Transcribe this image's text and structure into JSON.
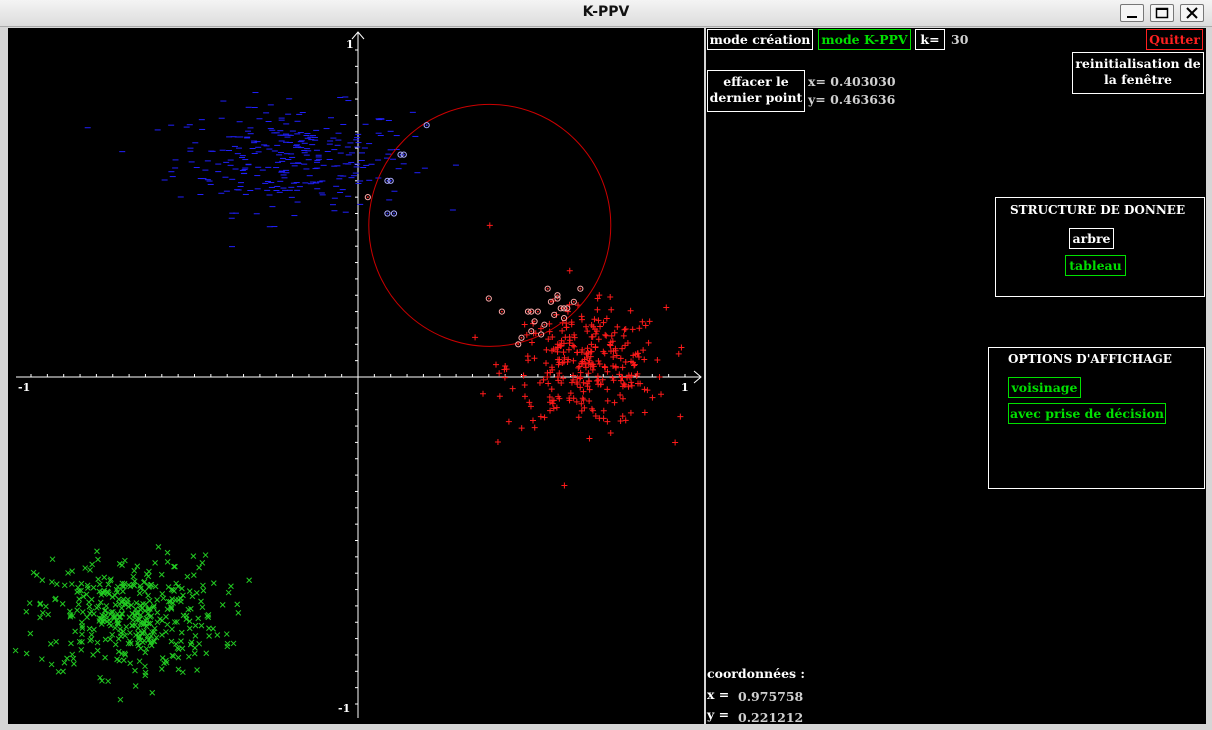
{
  "window": {
    "title": "K-PPV"
  },
  "toolbar": {
    "mode_creation": "mode création",
    "mode_kppv": "mode K-PPV",
    "k_label": "k=",
    "k_value": "30",
    "quit": "Quitter",
    "erase_line1": "effacer le",
    "erase_line2": "dernier point",
    "last_x": "x= 0.403030",
    "last_y": "y= 0.463636",
    "reset_line1": "reinitialisation de",
    "reset_line2": "la fenêtre"
  },
  "structure": {
    "title": "STRUCTURE DE DONNEE",
    "options": [
      "arbre",
      "tableau"
    ],
    "selected": "tableau"
  },
  "display": {
    "title": "OPTIONS D'AFFICHAGE",
    "options": [
      "voisinage",
      "avec prise de décision"
    ],
    "active": [
      "voisinage",
      "avec prise de décision"
    ]
  },
  "coords": {
    "title": "coordonnées :",
    "x_label": "x =",
    "x_value": "0.975758",
    "y_label": "y =",
    "y_value": "0.221212"
  },
  "colors": {
    "blue_class": "#2020ff",
    "red_class": "#ff1a1a",
    "green_class": "#22cc22",
    "circle": "#cc0000",
    "active_option": "#00e000"
  },
  "chart_data": {
    "type": "scatter",
    "xlim": [
      -1,
      1
    ],
    "ylim": [
      -1,
      1
    ],
    "tick_labels": {
      "x_min": "-1",
      "x_max": "1",
      "y_min": "-1",
      "y_max": "1"
    },
    "query_point": {
      "x": 0.40303,
      "y": 0.463636,
      "marker": "+"
    },
    "neighbor_radius": 0.37,
    "series": [
      {
        "marker": "-",
        "color": "#2020ff",
        "count": 300,
        "center": [
          -0.2,
          0.67
        ],
        "spread": [
          0.18,
          0.08
        ]
      },
      {
        "marker": "+",
        "color": "#ff1a1a",
        "count": 300,
        "center": [
          0.7,
          0.03
        ],
        "spread": [
          0.12,
          0.09
        ]
      },
      {
        "marker": "x",
        "color": "#22cc22",
        "count": 400,
        "center": [
          -0.7,
          -0.73
        ],
        "spread": [
          0.14,
          0.09
        ]
      }
    ],
    "neighbors": [
      {
        "x": 0.21,
        "y": 0.77,
        "color": "#aaaaff"
      },
      {
        "x": 0.13,
        "y": 0.68,
        "color": "#aaaaff"
      },
      {
        "x": 0.14,
        "y": 0.68,
        "color": "#aaaaff"
      },
      {
        "x": 0.09,
        "y": 0.6,
        "color": "#aaaaff"
      },
      {
        "x": 0.1,
        "y": 0.6,
        "color": "#aaaaff"
      },
      {
        "x": 0.03,
        "y": 0.55,
        "color": "#ffaaaa"
      },
      {
        "x": 0.09,
        "y": 0.5,
        "color": "#aaaaff"
      },
      {
        "x": 0.11,
        "y": 0.5,
        "color": "#aaaaff"
      },
      {
        "x": 0.4,
        "y": 0.24,
        "color": "#ffaaaa"
      },
      {
        "x": 0.44,
        "y": 0.2,
        "color": "#ffaaaa"
      },
      {
        "x": 0.52,
        "y": 0.2,
        "color": "#ffaaaa"
      },
      {
        "x": 0.53,
        "y": 0.2,
        "color": "#ffaaaa"
      },
      {
        "x": 0.55,
        "y": 0.2,
        "color": "#ffaaaa"
      },
      {
        "x": 0.58,
        "y": 0.27,
        "color": "#ffaaaa"
      },
      {
        "x": 0.59,
        "y": 0.23,
        "color": "#ffaaaa"
      },
      {
        "x": 0.61,
        "y": 0.24,
        "color": "#ffaaaa"
      },
      {
        "x": 0.62,
        "y": 0.21,
        "color": "#ffaaaa"
      },
      {
        "x": 0.63,
        "y": 0.21,
        "color": "#ffaaaa"
      },
      {
        "x": 0.64,
        "y": 0.21,
        "color": "#ffaaaa"
      },
      {
        "x": 0.6,
        "y": 0.19,
        "color": "#ffaaaa"
      },
      {
        "x": 0.54,
        "y": 0.17,
        "color": "#ffaaaa"
      },
      {
        "x": 0.63,
        "y": 0.18,
        "color": "#ffaaaa"
      },
      {
        "x": 0.53,
        "y": 0.14,
        "color": "#ffaaaa"
      },
      {
        "x": 0.56,
        "y": 0.13,
        "color": "#ffaaaa"
      },
      {
        "x": 0.49,
        "y": 0.1,
        "color": "#ffaaaa"
      },
      {
        "x": 0.66,
        "y": 0.23,
        "color": "#ffaaaa"
      },
      {
        "x": 0.68,
        "y": 0.27,
        "color": "#ffaaaa"
      },
      {
        "x": 0.61,
        "y": 0.25,
        "color": "#ffaaaa"
      },
      {
        "x": 0.57,
        "y": 0.16,
        "color": "#ffaaaa"
      },
      {
        "x": 0.5,
        "y": 0.12,
        "color": "#ffaaaa"
      }
    ]
  }
}
